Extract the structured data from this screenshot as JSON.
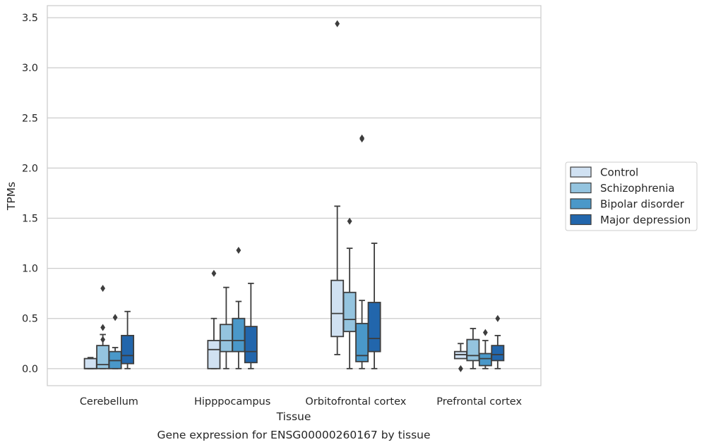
{
  "chart_data": {
    "type": "box",
    "caption": "Gene expression for ENSG00000260167 by tissue",
    "xlabel": "Tissue",
    "ylabel": "TPMs",
    "ylim": [
      -0.17,
      3.62
    ],
    "yticks": [
      0.0,
      0.5,
      1.0,
      1.5,
      2.0,
      2.5,
      3.0,
      3.5
    ],
    "ytick_labels": [
      "0.0",
      "0.5",
      "1.0",
      "1.5",
      "2.0",
      "2.5",
      "3.0",
      "3.5"
    ],
    "grid": "horizontal",
    "legend_position": "right",
    "categories": [
      "Cerebellum",
      "Hipppocampus",
      "Orbitofrontal cortex",
      "Prefrontal cortex"
    ],
    "series": [
      {
        "name": "Control",
        "color": "#d0e1f2",
        "boxes": [
          {
            "whislo": 0.0,
            "q1": 0.0,
            "med": 0.0,
            "q3": 0.1,
            "whishi": 0.11,
            "fliers": []
          },
          {
            "whislo": 0.0,
            "q1": 0.0,
            "med": 0.19,
            "q3": 0.28,
            "whishi": 0.5,
            "fliers": [
              0.95
            ]
          },
          {
            "whislo": 0.14,
            "q1": 0.32,
            "med": 0.55,
            "q3": 0.88,
            "whishi": 1.62,
            "fliers": [
              3.44
            ]
          },
          {
            "whislo": 0.1,
            "q1": 0.1,
            "med": 0.14,
            "q3": 0.17,
            "whishi": 0.25,
            "fliers": [
              0.0
            ]
          }
        ]
      },
      {
        "name": "Schizophrenia",
        "color": "#94c4df",
        "boxes": [
          {
            "whislo": 0.0,
            "q1": 0.0,
            "med": 0.04,
            "q3": 0.23,
            "whishi": 0.34,
            "fliers": [
              0.41,
              0.29,
              0.8
            ]
          },
          {
            "whislo": 0.0,
            "q1": 0.17,
            "med": 0.28,
            "q3": 0.44,
            "whishi": 0.81,
            "fliers": []
          },
          {
            "whislo": 0.0,
            "q1": 0.37,
            "med": 0.49,
            "q3": 0.76,
            "whishi": 1.2,
            "fliers": [
              1.47
            ]
          },
          {
            "whislo": 0.0,
            "q1": 0.08,
            "med": 0.13,
            "q3": 0.29,
            "whishi": 0.4,
            "fliers": []
          }
        ]
      },
      {
        "name": "Bipolar disorder",
        "color": "#4a98c9",
        "boxes": [
          {
            "whislo": 0.0,
            "q1": 0.0,
            "med": 0.08,
            "q3": 0.17,
            "whishi": 0.21,
            "fliers": [
              0.51
            ]
          },
          {
            "whislo": 0.0,
            "q1": 0.17,
            "med": 0.28,
            "q3": 0.5,
            "whishi": 0.67,
            "fliers": [
              1.18
            ]
          },
          {
            "whislo": 0.0,
            "q1": 0.07,
            "med": 0.13,
            "q3": 0.45,
            "whishi": 0.68,
            "fliers": [
              2.3,
              2.29
            ]
          },
          {
            "whislo": 0.0,
            "q1": 0.03,
            "med": 0.1,
            "q3": 0.15,
            "whishi": 0.28,
            "fliers": [
              0.36
            ]
          }
        ]
      },
      {
        "name": "Major depression",
        "color": "#2266ac",
        "boxes": [
          {
            "whislo": 0.0,
            "q1": 0.05,
            "med": 0.13,
            "q3": 0.33,
            "whishi": 0.57,
            "fliers": []
          },
          {
            "whislo": 0.0,
            "q1": 0.06,
            "med": 0.17,
            "q3": 0.42,
            "whishi": 0.85,
            "fliers": []
          },
          {
            "whislo": 0.0,
            "q1": 0.17,
            "med": 0.3,
            "q3": 0.66,
            "whishi": 1.25,
            "fliers": []
          },
          {
            "whislo": 0.0,
            "q1": 0.08,
            "med": 0.14,
            "q3": 0.23,
            "whishi": 0.33,
            "fliers": [
              0.5
            ]
          }
        ]
      }
    ]
  }
}
